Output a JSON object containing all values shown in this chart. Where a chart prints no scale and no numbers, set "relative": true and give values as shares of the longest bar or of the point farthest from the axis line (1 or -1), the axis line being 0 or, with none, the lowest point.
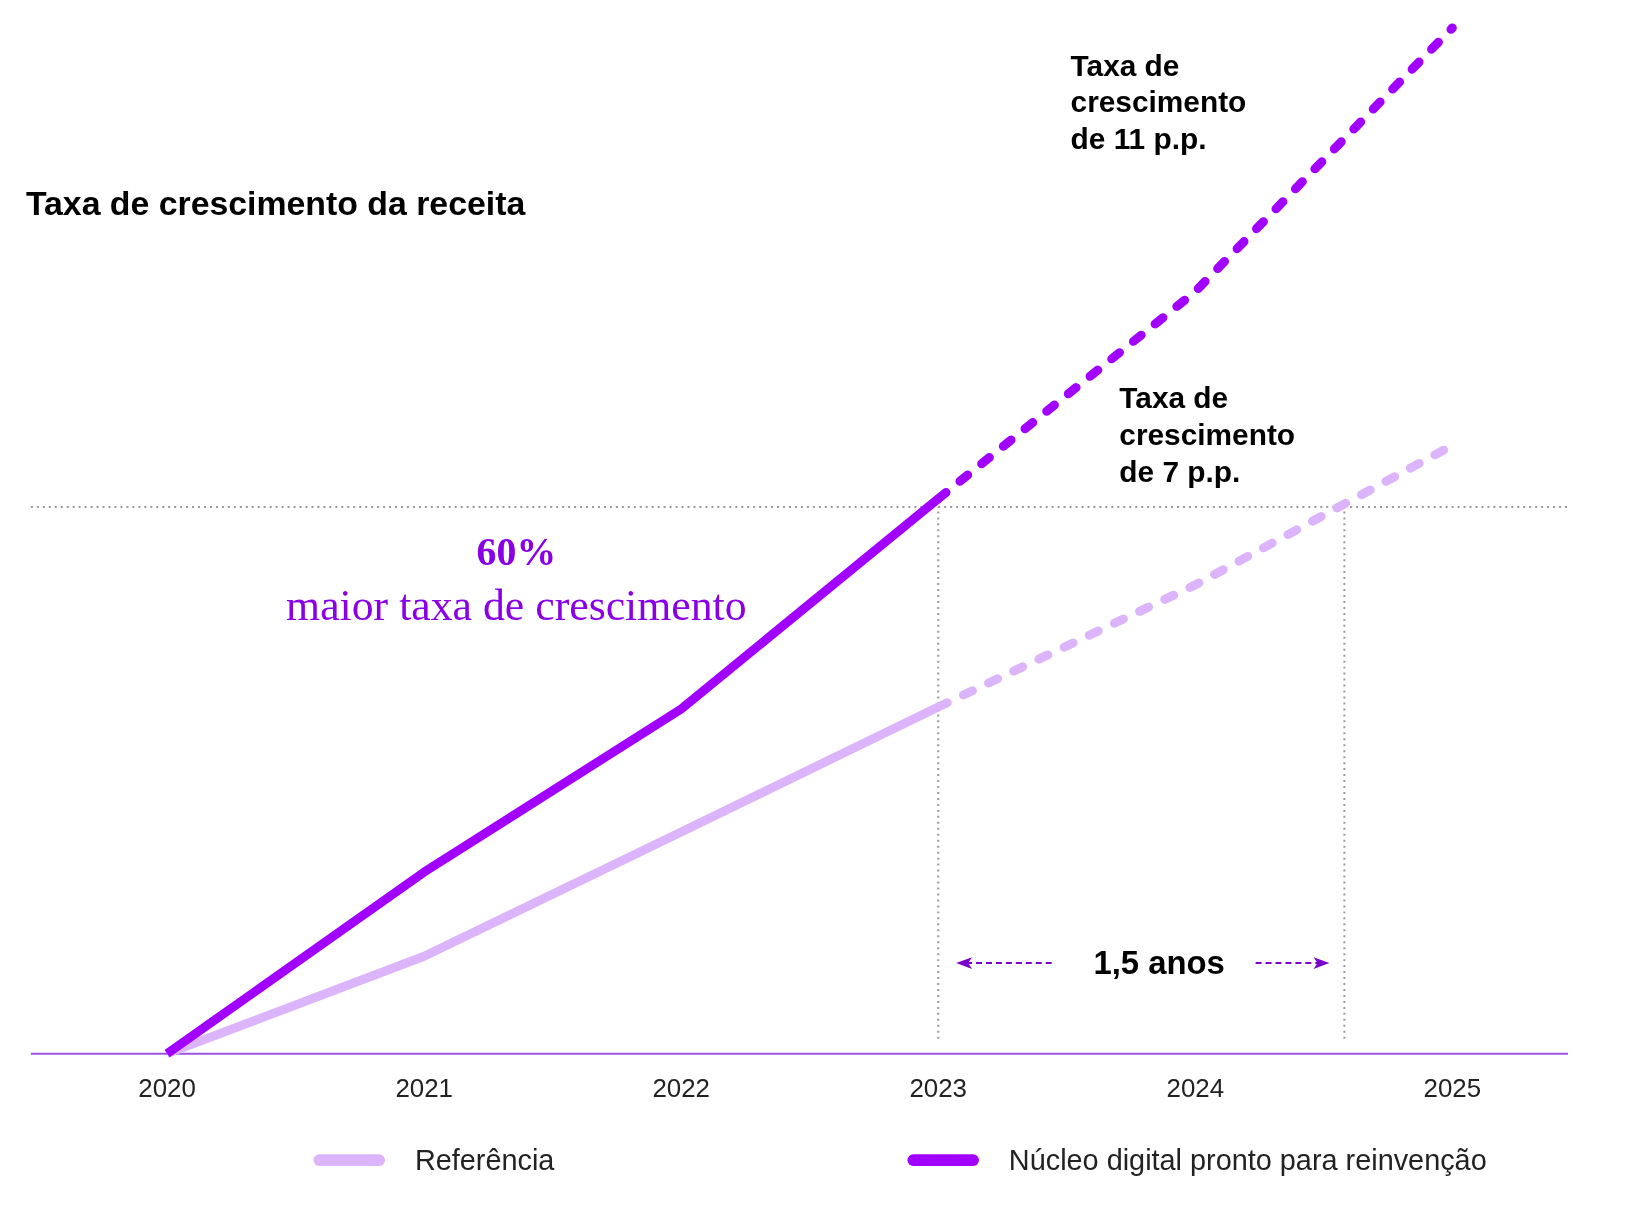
{
  "chart_data": {
    "type": "line",
    "title": "Taxa de crescimento da receita",
    "relative": true,
    "xlim": [
      2019.47,
      2025.45
    ],
    "xticks": [
      2020,
      2021,
      2022,
      2023,
      2024,
      2025
    ],
    "legend": "bottom",
    "grid": false,
    "marker": "none",
    "series": [
      {
        "name": "Referência",
        "color": "#dcb4fc",
        "line_style": "solid",
        "x": [
          2020,
          2021,
          2022,
          2023
        ],
        "values": [
          0,
          0.095,
          0.216,
          0.338
        ]
      },
      {
        "color": "#dcb4fc",
        "line_style": "dashed",
        "x": [
          2023,
          2024,
          2025
        ],
        "values": [
          0.338,
          0.457,
          0.593
        ]
      },
      {
        "name": "Núcleo digital pronto para reinvenção",
        "color": "#a100ff",
        "line_style": "solid",
        "x": [
          2020,
          2021,
          2022,
          2023
        ],
        "values": [
          0,
          0.177,
          0.336,
          0.541
        ]
      },
      {
        "color": "#a100ff",
        "line_style": "dashed",
        "x": [
          2023,
          2024,
          2025
        ],
        "values": [
          0.541,
          0.743,
          1.0
        ]
      }
    ],
    "ref_lines": [
      {
        "axis": "y",
        "value": 0.533,
        "color": "#999999",
        "line_style": "dotted"
      },
      {
        "axis": "x",
        "value": 2023,
        "color": "#999999",
        "line_style": "dotted"
      },
      {
        "axis": "x",
        "value": 2024.58,
        "color": "#999999",
        "line_style": "dotted"
      }
    ],
    "annotations": [
      "Taxa de crescimento de 11 p.p.",
      "Taxa de crescimento de 7 p.p.",
      "60%",
      "maior taxa de crescimento",
      "1,5 anos"
    ]
  }
}
